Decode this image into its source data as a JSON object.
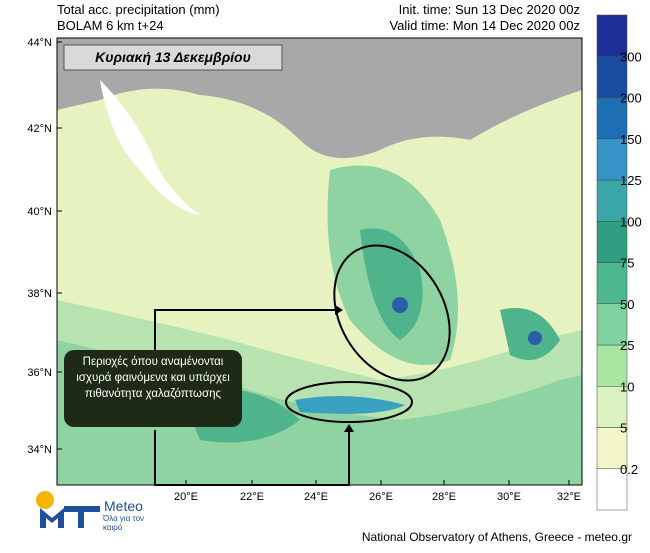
{
  "header": {
    "title_left_1": "Total acc. precipitation (mm)",
    "title_left_2": "BOLAM 6 km t+24",
    "init_time": "Init. time: Sun 13 Dec 2020 00z",
    "valid_time": "Valid time: Mon 14 Dec 2020 00z"
  },
  "map": {
    "date_label": "Κυριακή 13 Δεκεμβρίου",
    "lat_labels": [
      "44°N",
      "42°N",
      "40°N",
      "38°N",
      "36°N",
      "34°N"
    ],
    "lon_labels": [
      "20°E",
      "22°E",
      "24°E",
      "26°E",
      "28°E",
      "30°E",
      "32°E"
    ],
    "annotation": "Περιοχές όπου αναμένονται ισχυρά φαινόμενα και υπάρχει πιθανότητα χαλαζόπτωσης"
  },
  "colorbar": {
    "labels": [
      "0.2",
      "5",
      "10",
      "25",
      "50",
      "75",
      "100",
      "125",
      "150",
      "200",
      "300"
    ]
  },
  "footer": {
    "logo_name": "Meteo",
    "logo_tagline": "Όλα για τον καιρό",
    "credit": "National Observatory of Athens, Greece - meteo.gr"
  }
}
